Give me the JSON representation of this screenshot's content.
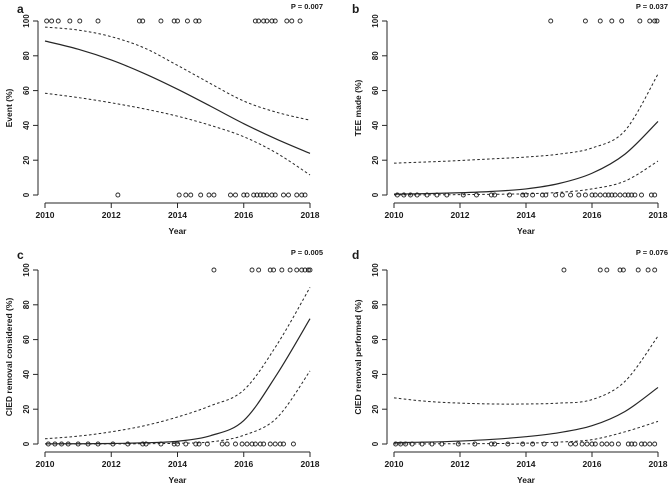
{
  "figure": {
    "background": "#ffffff",
    "line_color": "#262626",
    "text_color": "#1a1a1a"
  },
  "chart_data": [
    {
      "type": "scatter",
      "panel_label": "a",
      "p_label": "P = 0.007",
      "xlabel": "Year",
      "ylabel": "Event (%)",
      "xlim": [
        2010,
        2018
      ],
      "ylim": [
        0,
        100
      ],
      "x_ticks": [
        2010,
        2012,
        2014,
        2016,
        2018
      ],
      "y_ticks": [
        0,
        20,
        40,
        60,
        80,
        100
      ],
      "curve_x": [
        2010,
        2011,
        2012,
        2013,
        2014,
        2015,
        2016,
        2017,
        2018
      ],
      "fit": [
        88.5,
        83.8,
        77.6,
        69.8,
        60.8,
        51.0,
        41.0,
        32.0,
        23.9
      ],
      "ci_upper": [
        96.5,
        94.8,
        91.0,
        84.5,
        74.5,
        64.0,
        54.0,
        47.5,
        43.0
      ],
      "ci_lower": [
        58.5,
        56.0,
        53.0,
        49.5,
        45.3,
        40.0,
        33.5,
        24.0,
        11.5
      ],
      "points_100": [
        2010.05,
        2010.2,
        2010.4,
        2010.75,
        2011.05,
        2011.6,
        2012.85,
        2012.95,
        2013.5,
        2013.9,
        2014.0,
        2014.3,
        2014.55,
        2014.65,
        2016.35,
        2016.45,
        2016.6,
        2016.7,
        2016.85,
        2016.95,
        2017.3,
        2017.45,
        2017.7
      ],
      "points_0": [
        2012.2,
        2014.05,
        2014.25,
        2014.4,
        2014.7,
        2014.95,
        2015.1,
        2015.6,
        2015.75,
        2016.0,
        2016.1,
        2016.3,
        2016.4,
        2016.5,
        2016.6,
        2016.7,
        2016.85,
        2016.95,
        2017.2,
        2017.35,
        2017.6,
        2017.75,
        2017.85
      ]
    },
    {
      "type": "scatter",
      "panel_label": "b",
      "p_label": "P = 0.037",
      "xlabel": "Year",
      "ylabel": "TEE made (%)",
      "xlim": [
        2010,
        2018
      ],
      "ylim": [
        0,
        100
      ],
      "x_ticks": [
        2010,
        2012,
        2014,
        2016,
        2018
      ],
      "y_ticks": [
        0,
        20,
        40,
        60,
        80,
        100
      ],
      "curve_x": [
        2010,
        2011,
        2012,
        2013,
        2014,
        2015,
        2016,
        2017,
        2018
      ],
      "fit": [
        0.5,
        0.8,
        1.3,
        2.1,
        3.5,
        6.6,
        12.5,
        23.5,
        42.3
      ],
      "ci_upper": [
        18.3,
        19.0,
        19.8,
        20.8,
        21.8,
        23.5,
        27.0,
        37.0,
        69.5
      ],
      "ci_lower": [
        0.1,
        0.1,
        0.2,
        0.4,
        0.7,
        1.5,
        3.5,
        8.0,
        19.5
      ],
      "points_100": [
        2014.75,
        2015.8,
        2016.25,
        2016.6,
        2016.9,
        2017.45,
        2017.75,
        2017.9,
        2017.97
      ],
      "points_0": [
        2010.1,
        2010.3,
        2010.5,
        2010.7,
        2011.0,
        2011.3,
        2011.6,
        2012.1,
        2012.5,
        2012.95,
        2013.05,
        2013.5,
        2013.9,
        2014.0,
        2014.2,
        2014.5,
        2014.6,
        2014.9,
        2015.1,
        2015.35,
        2015.6,
        2015.8,
        2016.0,
        2016.1,
        2016.25,
        2016.4,
        2016.5,
        2016.6,
        2016.7,
        2016.85,
        2017.0,
        2017.1,
        2017.2,
        2017.3,
        2017.5,
        2017.8,
        2017.9
      ]
    },
    {
      "type": "scatter",
      "panel_label": "c",
      "p_label": "P = 0.005",
      "xlabel": "Year",
      "ylabel": "CIED removal considered (%)",
      "xlim": [
        2010,
        2018
      ],
      "ylim": [
        0,
        100
      ],
      "x_ticks": [
        2010,
        2012,
        2014,
        2016,
        2018
      ],
      "y_ticks": [
        0,
        20,
        40,
        60,
        80,
        100
      ],
      "curve_x": [
        2010,
        2011,
        2012,
        2013,
        2014,
        2015,
        2016,
        2017,
        2018
      ],
      "fit": [
        0.1,
        0.15,
        0.3,
        0.7,
        1.6,
        4.8,
        13.5,
        40.0,
        72.0
      ],
      "ci_upper": [
        3.0,
        4.5,
        7.0,
        10.5,
        15.5,
        22.0,
        31.0,
        57.0,
        90.0
      ],
      "ci_lower": [
        0.0,
        0.0,
        0.05,
        0.15,
        0.4,
        1.2,
        5.0,
        15.0,
        42.0
      ],
      "points_100": [
        2015.1,
        2016.25,
        2016.45,
        2016.8,
        2016.9,
        2017.15,
        2017.4,
        2017.6,
        2017.75,
        2017.85,
        2017.95,
        2018.0
      ],
      "points_0": [
        2010.1,
        2010.3,
        2010.5,
        2010.7,
        2011.0,
        2011.3,
        2011.6,
        2012.05,
        2012.5,
        2012.95,
        2013.05,
        2013.5,
        2013.9,
        2014.0,
        2014.25,
        2014.55,
        2014.65,
        2014.9,
        2015.35,
        2015.5,
        2015.75,
        2015.95,
        2016.1,
        2016.25,
        2016.35,
        2016.5,
        2016.6,
        2016.8,
        2016.95,
        2017.1,
        2017.2,
        2017.5
      ]
    },
    {
      "type": "scatter",
      "panel_label": "d",
      "p_label": "P = 0.076",
      "xlabel": "Year",
      "ylabel": "CIED removal performed (%)",
      "xlim": [
        2010,
        2018
      ],
      "ylim": [
        0,
        100
      ],
      "x_ticks": [
        2010,
        2012,
        2014,
        2016,
        2018
      ],
      "y_ticks": [
        0,
        20,
        40,
        60,
        80,
        100
      ],
      "curve_x": [
        2010,
        2011,
        2012,
        2013,
        2014,
        2015,
        2016,
        2017,
        2018
      ],
      "fit": [
        0.8,
        1.1,
        1.7,
        2.7,
        4.2,
        6.5,
        10.5,
        18.7,
        32.5
      ],
      "ci_upper": [
        26.5,
        24.5,
        23.5,
        23.0,
        23.0,
        23.5,
        25.5,
        36.0,
        62.0
      ],
      "ci_lower": [
        0.1,
        0.1,
        0.15,
        0.25,
        0.5,
        1.1,
        2.5,
        7.0,
        13.0
      ],
      "points_100": [
        2015.15,
        2016.25,
        2016.45,
        2016.85,
        2016.95,
        2017.4,
        2017.7,
        2017.9
      ],
      "points_0": [
        2010.05,
        2010.2,
        2010.35,
        2010.55,
        2010.85,
        2011.15,
        2011.45,
        2011.95,
        2012.45,
        2012.95,
        2013.05,
        2013.45,
        2013.9,
        2014.2,
        2014.55,
        2014.9,
        2015.35,
        2015.5,
        2015.7,
        2015.85,
        2016.0,
        2016.1,
        2016.3,
        2016.45,
        2016.6,
        2016.8,
        2017.1,
        2017.2,
        2017.3,
        2017.5,
        2017.6,
        2017.75,
        2017.9
      ]
    }
  ]
}
